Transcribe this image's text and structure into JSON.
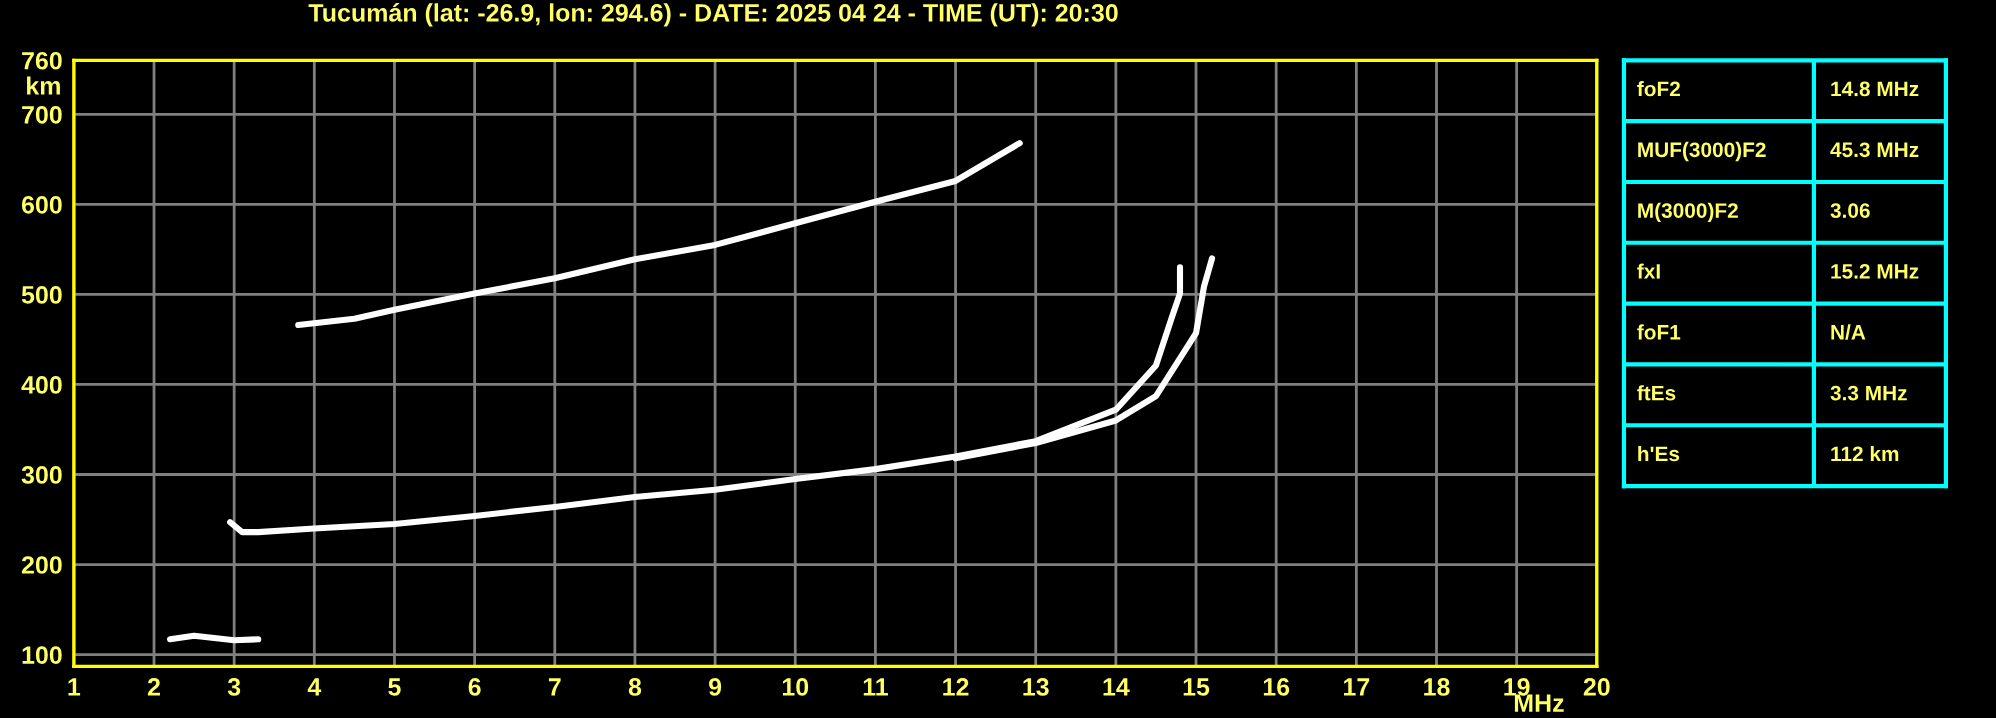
{
  "chart_data": [
    {
      "type": "line",
      "title": "Tucumán (lat: -26.9, lon: 294.6) - DATE: 2025 04 24 - TIME (UT): 20:30",
      "xlabel": "MHz",
      "ylabel": "km",
      "xlim": [
        1,
        20
      ],
      "xticks": [
        1,
        2,
        3,
        4,
        5,
        6,
        7,
        8,
        9,
        10,
        11,
        12,
        13,
        14,
        15,
        16,
        17,
        18,
        19,
        20
      ],
      "ylim": [
        87,
        760
      ],
      "yticks": [
        100,
        200,
        300,
        400,
        500,
        600,
        700,
        760
      ],
      "grid": true,
      "marker": "none",
      "line_style": "solid",
      "series": [
        {
          "color": "#ffffff",
          "x": [
            2.95,
            3.1,
            3.3,
            4,
            5,
            6,
            7,
            8,
            9,
            10,
            11,
            12,
            13,
            14,
            14.5,
            14.7,
            14.8,
            14.8
          ],
          "values": [
            247,
            236,
            236,
            240,
            245,
            254,
            264,
            275,
            283,
            295,
            306,
            320,
            337,
            372,
            421,
            475,
            501,
            530
          ]
        },
        {
          "color": "#ffffff",
          "x": [
            12,
            13,
            14,
            14.5,
            15,
            15.1,
            15.2
          ],
          "values": [
            318,
            335,
            360,
            387,
            457,
            509,
            540
          ]
        },
        {
          "color": "#ffffff",
          "x": [
            3.8,
            4.5,
            5,
            6,
            7,
            8,
            9,
            10,
            11,
            12,
            12.8
          ],
          "values": [
            466,
            473,
            483,
            501,
            518,
            539,
            555,
            579,
            603,
            626,
            668
          ]
        },
        {
          "color": "#ffffff",
          "x": [
            2.2,
            2.5,
            3.0,
            3.3
          ],
          "values": [
            117,
            121,
            116,
            117
          ]
        }
      ]
    },
    {
      "type": "other",
      "annotations": [
        "foF2",
        "14.8 MHz",
        "MUF(3000)F2",
        "45.3 MHz",
        "M(3000)F2",
        "3.06",
        "fxI",
        "15.2 MHz",
        "foF1",
        "N/A",
        "ftEs",
        "3.3 MHz",
        "h'Es",
        "112 km"
      ]
    }
  ]
}
